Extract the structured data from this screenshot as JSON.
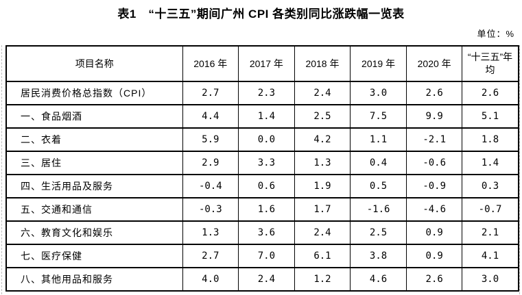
{
  "title": "表1　“十三五”期间广州 CPI 各类别同比涨跌幅一览表",
  "unit_label": "单位：%",
  "table": {
    "columns": [
      "项目名称",
      "2016 年",
      "2017 年",
      "2018 年",
      "2019 年",
      "2020 年",
      "“十三五”年均"
    ],
    "rows": [
      {
        "label": "居民消费价格总指数（CPI）",
        "values": [
          "2.7",
          "2.3",
          "2.4",
          "3.0",
          "2.6",
          "2.6"
        ]
      },
      {
        "label": "一、食品烟酒",
        "values": [
          "4.4",
          "1.4",
          "2.5",
          "7.5",
          "9.9",
          "5.1"
        ]
      },
      {
        "label": "二、衣着",
        "values": [
          "5.9",
          "0.0",
          "4.2",
          "1.1",
          "-2.1",
          "1.8"
        ]
      },
      {
        "label": "三、居住",
        "values": [
          "2.9",
          "3.3",
          "1.3",
          "0.4",
          "-0.6",
          "1.4"
        ]
      },
      {
        "label": "四、生活用品及服务",
        "values": [
          "-0.4",
          "0.6",
          "1.9",
          "0.5",
          "-0.9",
          "0.3"
        ]
      },
      {
        "label": "五、交通和通信",
        "values": [
          "-0.3",
          "1.6",
          "1.7",
          "-1.6",
          "-4.6",
          "-0.7"
        ]
      },
      {
        "label": "六、教育文化和娱乐",
        "values": [
          "1.3",
          "3.6",
          "2.4",
          "2.5",
          "0.9",
          "2.1"
        ]
      },
      {
        "label": "七、医疗保健",
        "values": [
          "2.7",
          "7.0",
          "6.1",
          "3.8",
          "0.9",
          "4.1"
        ]
      },
      {
        "label": "八、其他用品和服务",
        "values": [
          "4.0",
          "2.4",
          "1.2",
          "4.6",
          "2.6",
          "3.0"
        ]
      }
    ]
  },
  "colors": {
    "text": "#000000",
    "border": "#000000",
    "background": "#ffffff",
    "text_boundary_dash": "#bdbdbd"
  }
}
